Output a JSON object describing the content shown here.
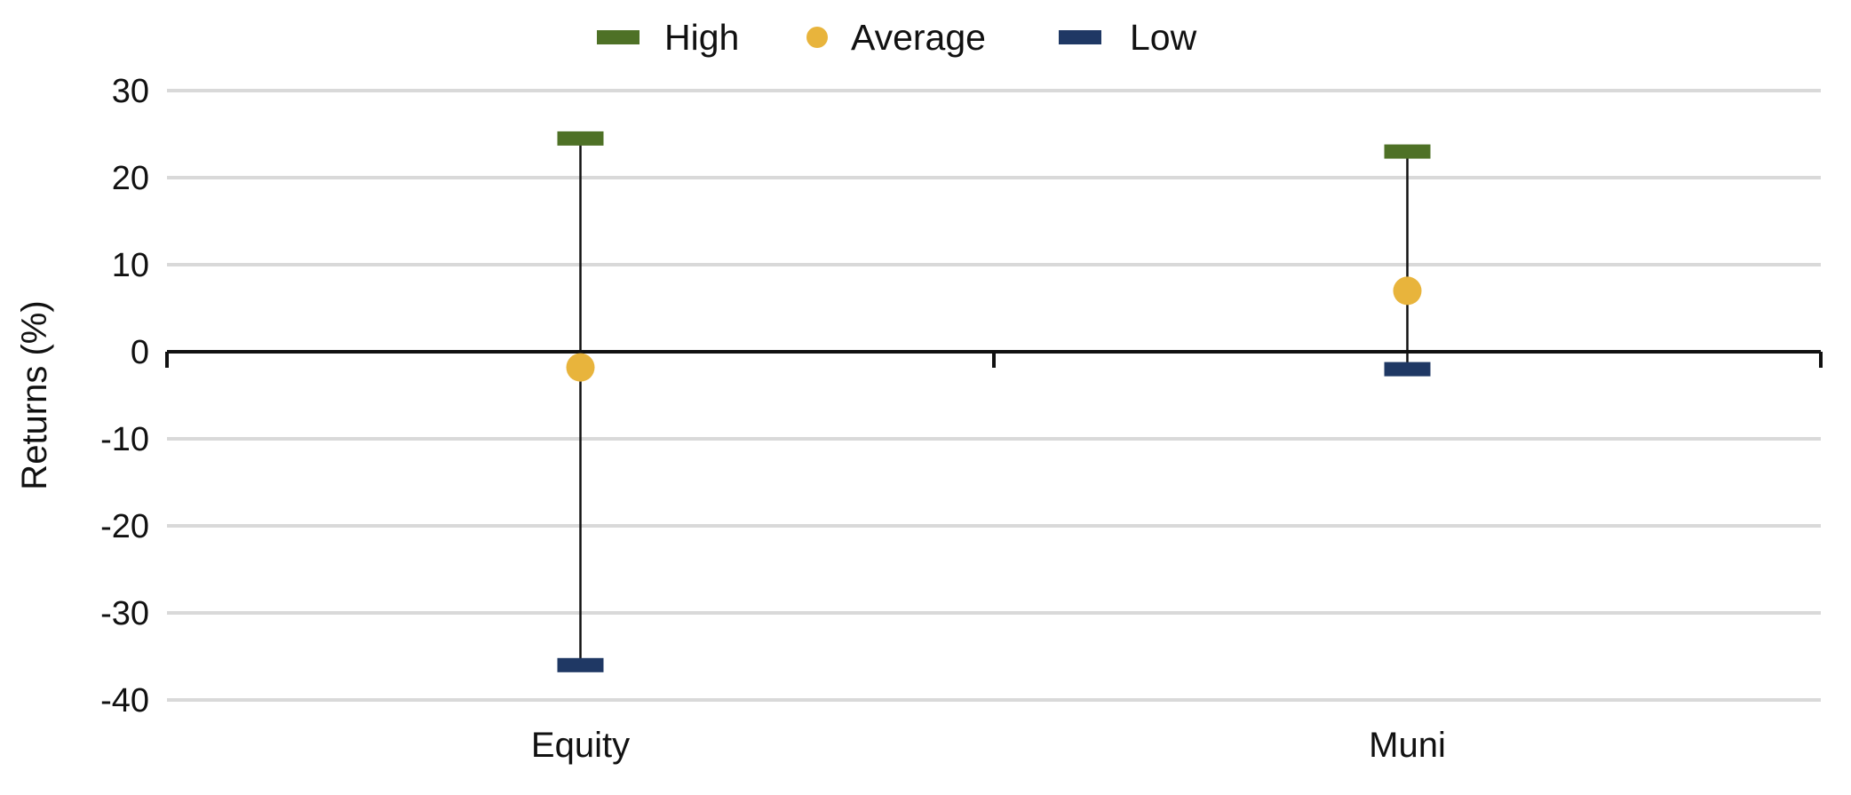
{
  "chart_data": {
    "type": "range",
    "categories": [
      "Equity",
      "Muni"
    ],
    "series": [
      {
        "name": "High",
        "marker": "bar",
        "values": [
          24.5,
          23
        ]
      },
      {
        "name": "Average",
        "marker": "circle",
        "values": [
          -1.8,
          7
        ]
      },
      {
        "name": "Low",
        "marker": "bar",
        "values": [
          -36,
          -2
        ]
      }
    ],
    "xlabel": "",
    "ylabel": "Returns (%)",
    "ylim": [
      -40,
      30
    ],
    "yticks": [
      "30",
      "20",
      "10",
      "0",
      "-10",
      "-20",
      "-30",
      "-40"
    ],
    "ytick_values": [
      30,
      20,
      10,
      0,
      -10,
      -20,
      -30,
      -40
    ],
    "grid": true,
    "legend_position": "top-center",
    "colors": {
      "High": "#4e7126",
      "Average": "#e8b43c",
      "Low": "#1f3864",
      "grid": "#d9d9d9",
      "axis": "#111111",
      "whisker": "#111111"
    }
  }
}
